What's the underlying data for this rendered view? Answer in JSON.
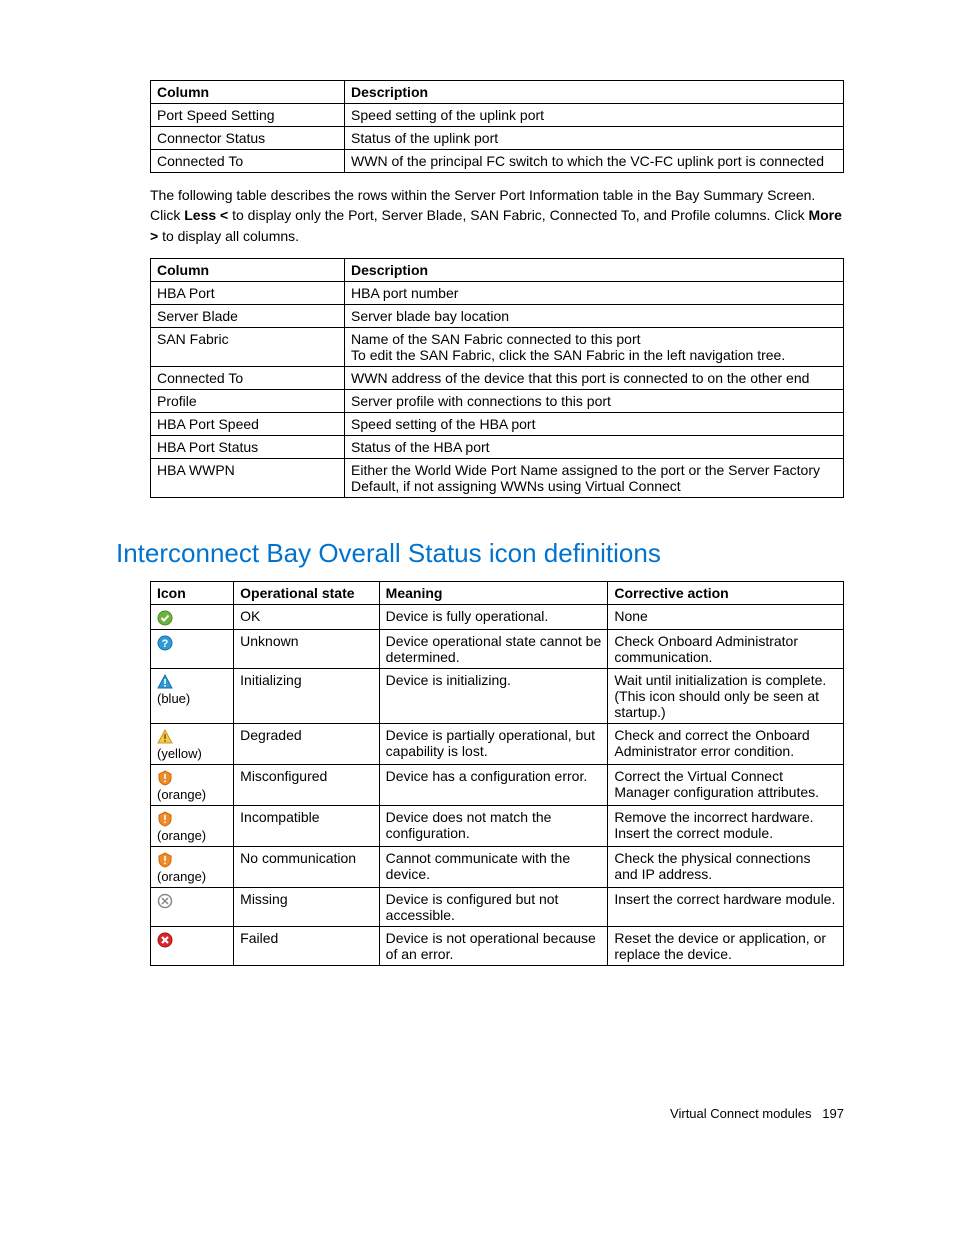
{
  "table1": {
    "headers": [
      "Column",
      "Description"
    ],
    "rows": [
      [
        "Port Speed Setting",
        "Speed setting of the uplink port"
      ],
      [
        "Connector Status",
        "Status of the uplink port"
      ],
      [
        "Connected To",
        "WWN of the principal FC switch to which the VC-FC uplink port is connected"
      ]
    ]
  },
  "para1_a": "The following table describes the rows within the Server Port Information table in the Bay Summary Screen. Click ",
  "para1_b": "Less <",
  "para1_c": " to display only the Port, Server Blade, SAN Fabric, Connected To, and Profile columns. Click ",
  "para1_d": "More >",
  "para1_e": " to display all columns.",
  "table2": {
    "headers": [
      "Column",
      "Description"
    ],
    "rows": [
      [
        "HBA Port",
        "HBA port number"
      ],
      [
        "Server Blade",
        "Server blade bay location"
      ],
      [
        "SAN Fabric",
        "Name of the SAN Fabric connected to this port\nTo edit the SAN Fabric, click the SAN Fabric in the left navigation tree."
      ],
      [
        "Connected To",
        "WWN address of the device that this port is connected to on the other end"
      ],
      [
        "Profile",
        "Server profile with connections to this port"
      ],
      [
        "HBA Port Speed",
        "Speed setting of the HBA port"
      ],
      [
        "HBA Port Status",
        "Status of the HBA port"
      ],
      [
        "HBA WWPN",
        "Either the World Wide Port Name assigned to the port or the Server Factory Default, if not assigning WWNs using Virtual Connect"
      ]
    ]
  },
  "section_title": "Interconnect Bay Overall Status icon definitions",
  "table3": {
    "headers": [
      "Icon",
      "Operational state",
      "Meaning",
      "Corrective action"
    ],
    "rows": [
      {
        "icon": "ok",
        "note": "",
        "state": "OK",
        "meaning": "Device is fully operational.",
        "action": "None"
      },
      {
        "icon": "unknown",
        "note": "",
        "state": "Unknown",
        "meaning": "Device operational state cannot be determined.",
        "action": "Check Onboard Administrator communication."
      },
      {
        "icon": "warn-blue",
        "note": "(blue)",
        "state": "Initializing",
        "meaning": "Device is initializing.",
        "action": "Wait until initialization is complete. (This icon should only be seen at startup.)"
      },
      {
        "icon": "warn-yellow",
        "note": "(yellow)",
        "state": "Degraded",
        "meaning": "Device is partially operational, but capability is lost.",
        "action": "Check and correct the Onboard Administrator error condition."
      },
      {
        "icon": "shield-orange",
        "note": "(orange)",
        "state": "Misconfigured",
        "meaning": "Device has a configuration error.",
        "action": "Correct the Virtual Connect Manager configuration attributes."
      },
      {
        "icon": "shield-orange",
        "note": "(orange)",
        "state": "Incompatible",
        "meaning": "Device does not match the configuration.",
        "action": "Remove the incorrect hardware. Insert the correct module."
      },
      {
        "icon": "shield-orange",
        "note": "(orange)",
        "state": "No communication",
        "meaning": "Cannot communicate with the device.",
        "action": "Check the physical connections and IP address."
      },
      {
        "icon": "missing",
        "note": "",
        "state": "Missing",
        "meaning": "Device is configured but not accessible.",
        "action": "Insert the correct hardware module."
      },
      {
        "icon": "failed",
        "note": "",
        "state": "Failed",
        "meaning": "Device is not operational because of an error.",
        "action": "Reset the device or application, or replace the device."
      }
    ]
  },
  "footer_text": "Virtual Connect modules",
  "footer_page": "197",
  "colors": {
    "heading": "#0073cf",
    "ok_fill": "#6cb33f",
    "unknown_fill": "#2e9bd6",
    "warn_blue": "#2e9bd6",
    "warn_yellow": "#f7c948",
    "shield_orange": "#f08a24",
    "missing_stroke": "#888888",
    "failed_fill": "#d9262b"
  }
}
